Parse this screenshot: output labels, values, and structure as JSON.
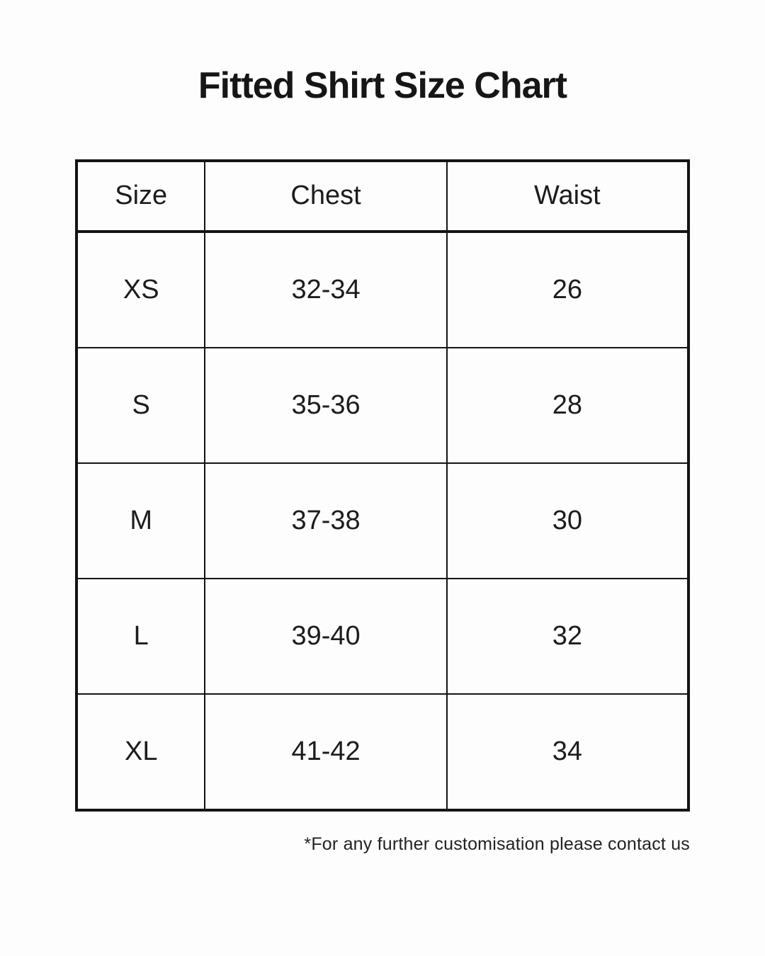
{
  "page": {
    "title": "Fitted Shirt Size Chart",
    "footnote": "*For any further customisation please contact us"
  },
  "table": {
    "columns": [
      "Size",
      "Chest",
      "Waist"
    ],
    "rows": [
      {
        "size": "XS",
        "chest": "32-34",
        "waist": "26"
      },
      {
        "size": "S",
        "chest": "35-36",
        "waist": "28"
      },
      {
        "size": "M",
        "chest": "37-38",
        "waist": "30"
      },
      {
        "size": "L",
        "chest": "39-40",
        "waist": "32"
      },
      {
        "size": "XL",
        "chest": "41-42",
        "waist": "34"
      }
    ]
  },
  "colors": {
    "background": "#fdfdfd",
    "text": "#1c1c1c",
    "border": "#141414"
  }
}
